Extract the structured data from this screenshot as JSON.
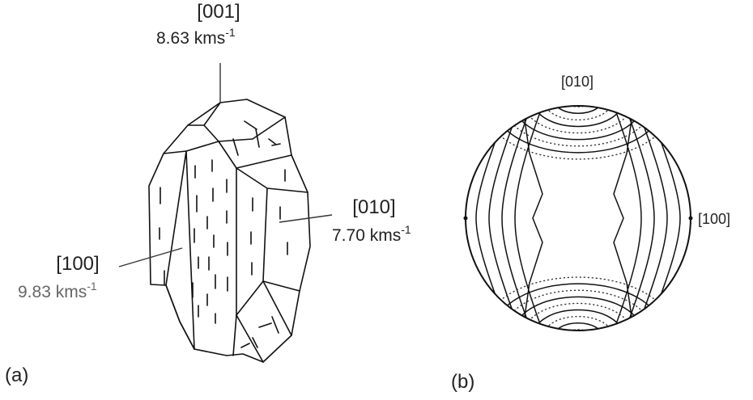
{
  "panel_a": {
    "tag": "(a)",
    "axis_001": {
      "direction": "[001]",
      "velocity": "8.63 kms",
      "unit_exp": "-1"
    },
    "axis_010": {
      "direction": "[010]",
      "velocity": "7.70 kms",
      "unit_exp": "-1"
    },
    "axis_100": {
      "direction": "[100]",
      "velocity": "9.83 kms",
      "unit_exp": "-1"
    }
  },
  "panel_b": {
    "tag": "(b)",
    "top_label": "[010]",
    "right_label": "[100]"
  }
}
